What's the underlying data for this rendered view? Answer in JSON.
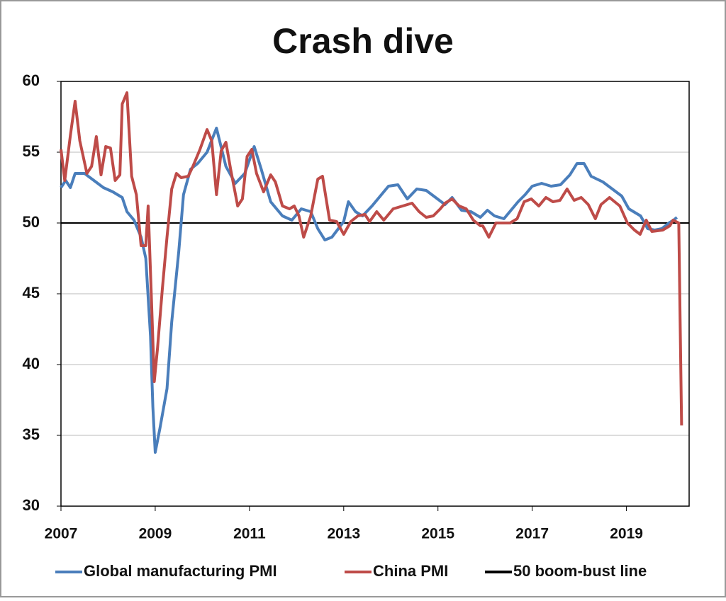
{
  "chart_data": {
    "type": "line",
    "title": "Crash dive",
    "xlim": [
      2007,
      2020.33
    ],
    "xticks": [
      2007,
      2009,
      2011,
      2013,
      2015,
      2017,
      2019
    ],
    "ylim": [
      30,
      60
    ],
    "yticks": [
      30,
      35,
      40,
      45,
      50,
      55,
      60
    ],
    "grid": true,
    "legend": "bottom",
    "series": [
      {
        "name": "Global manufacturing PMI",
        "color": "#4a7ebb",
        "x": [
          2007.0,
          2007.1,
          2007.2,
          2007.3,
          2007.5,
          2007.7,
          2007.9,
          2008.1,
          2008.3,
          2008.4,
          2008.55,
          2008.7,
          2008.8,
          2008.9,
          2008.95,
          2009.0,
          2009.1,
          2009.25,
          2009.35,
          2009.5,
          2009.6,
          2009.75,
          2009.9,
          2010.1,
          2010.3,
          2010.5,
          2010.7,
          2010.9,
          2011.1,
          2011.25,
          2011.45,
          2011.7,
          2011.9,
          2012.1,
          2012.3,
          2012.45,
          2012.6,
          2012.75,
          2013.0,
          2013.1,
          2013.25,
          2013.4,
          2013.6,
          2013.8,
          2013.95,
          2014.15,
          2014.35,
          2014.55,
          2014.75,
          2014.95,
          2015.15,
          2015.3,
          2015.5,
          2015.7,
          2015.9,
          2016.05,
          2016.2,
          2016.4,
          2016.55,
          2016.7,
          2016.85,
          2017.0,
          2017.2,
          2017.4,
          2017.6,
          2017.8,
          2017.95,
          2018.1,
          2018.25,
          2018.5,
          2018.7,
          2018.9,
          2019.05,
          2019.3,
          2019.45,
          2019.6,
          2019.75,
          2019.9,
          2020.0,
          2020.07
        ],
        "values": [
          52.5,
          53.0,
          52.5,
          53.5,
          53.5,
          53.0,
          52.5,
          52.2,
          51.8,
          50.8,
          50.2,
          49.0,
          47.5,
          42.0,
          37.0,
          33.8,
          35.5,
          38.3,
          43.0,
          48.0,
          52.0,
          53.8,
          54.2,
          55.0,
          56.7,
          54.0,
          52.8,
          53.5,
          55.4,
          53.8,
          51.5,
          50.5,
          50.2,
          51.0,
          50.8,
          49.6,
          48.8,
          49.0,
          50.1,
          51.5,
          50.8,
          50.5,
          51.2,
          52.0,
          52.6,
          52.7,
          51.7,
          52.4,
          52.3,
          51.8,
          51.3,
          51.8,
          50.9,
          50.8,
          50.4,
          50.9,
          50.5,
          50.3,
          50.9,
          51.5,
          52.0,
          52.6,
          52.8,
          52.6,
          52.7,
          53.4,
          54.2,
          54.2,
          53.3,
          52.9,
          52.4,
          51.9,
          51.0,
          50.5,
          49.6,
          49.5,
          49.6,
          50.0,
          50.2,
          50.4
        ]
      },
      {
        "name": "China PMI",
        "color": "#be4b48",
        "x": [
          2007.0,
          2007.08,
          2007.2,
          2007.3,
          2007.4,
          2007.55,
          2007.65,
          2007.75,
          2007.85,
          2007.95,
          2008.05,
          2008.15,
          2008.25,
          2008.3,
          2008.4,
          2008.5,
          2008.6,
          2008.7,
          2008.8,
          2008.85,
          2008.92,
          2008.98,
          2009.05,
          2009.15,
          2009.25,
          2009.35,
          2009.45,
          2009.55,
          2009.7,
          2009.8,
          2009.95,
          2010.1,
          2010.2,
          2010.3,
          2010.4,
          2010.5,
          2010.6,
          2010.75,
          2010.85,
          2010.95,
          2011.05,
          2011.15,
          2011.3,
          2011.45,
          2011.55,
          2011.7,
          2011.85,
          2011.95,
          2012.05,
          2012.15,
          2012.3,
          2012.45,
          2012.55,
          2012.7,
          2012.85,
          2013.0,
          2013.15,
          2013.3,
          2013.45,
          2013.55,
          2013.7,
          2013.85,
          2014.05,
          2014.25,
          2014.45,
          2014.6,
          2014.75,
          2014.9,
          2015.05,
          2015.15,
          2015.3,
          2015.45,
          2015.6,
          2015.75,
          2015.9,
          2015.95,
          2016.0,
          2016.08,
          2016.23,
          2016.53,
          2016.68,
          2016.83,
          2016.98,
          2017.14,
          2017.29,
          2017.44,
          2017.59,
          2017.74,
          2017.89,
          2018.04,
          2018.19,
          2018.34,
          2018.46,
          2018.64,
          2018.86,
          2019.02,
          2019.17,
          2019.29,
          2019.42,
          2019.54,
          2019.77,
          2019.92,
          2019.99,
          2020.11,
          2020.17
        ],
        "values": [
          55.2,
          53.0,
          56.2,
          58.6,
          55.8,
          53.5,
          54.0,
          56.1,
          53.4,
          55.4,
          55.3,
          53.0,
          53.4,
          58.4,
          59.2,
          53.3,
          52.0,
          48.4,
          48.4,
          51.2,
          44.6,
          38.8,
          41.2,
          45.3,
          49.0,
          52.4,
          53.5,
          53.2,
          53.3,
          54.0,
          55.2,
          56.6,
          55.8,
          52.0,
          55.1,
          55.7,
          53.8,
          51.2,
          51.7,
          54.7,
          55.2,
          53.5,
          52.2,
          53.4,
          52.9,
          51.2,
          51.0,
          51.2,
          50.5,
          49.0,
          50.5,
          53.1,
          53.3,
          50.2,
          50.1,
          49.2,
          50.1,
          50.5,
          50.6,
          50.1,
          50.8,
          50.2,
          51.0,
          51.2,
          51.4,
          50.8,
          50.4,
          50.5,
          51.0,
          51.4,
          51.7,
          51.2,
          51.0,
          50.2,
          49.8,
          49.8,
          49.5,
          49.0,
          50.0,
          50.0,
          50.3,
          51.5,
          51.7,
          51.2,
          51.8,
          51.5,
          51.6,
          52.4,
          51.6,
          51.8,
          51.3,
          50.3,
          51.3,
          51.8,
          51.2,
          50.0,
          49.5,
          49.2,
          50.2,
          49.4,
          49.5,
          49.8,
          50.2,
          50.0,
          35.7
        ]
      },
      {
        "name": "50 boom-bust line",
        "color": "#000000",
        "x": [
          2007,
          2020.33
        ],
        "values": [
          50,
          50
        ]
      }
    ]
  }
}
